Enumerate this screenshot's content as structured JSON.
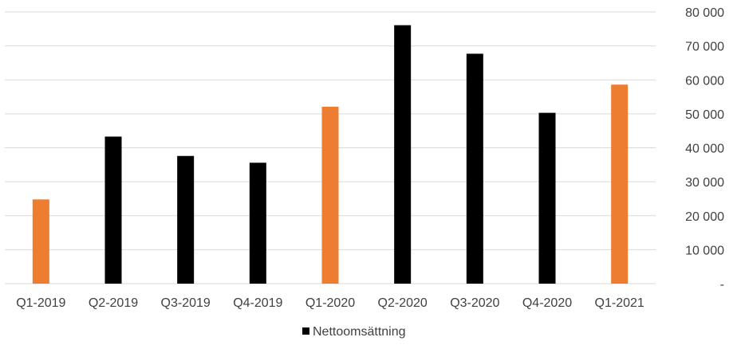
{
  "chart_data": {
    "type": "bar",
    "title": "",
    "xlabel": "",
    "ylabel": "",
    "categories": [
      "Q1-2019",
      "Q2-2019",
      "Q3-2019",
      "Q4-2019",
      "Q1-2020",
      "Q2-2020",
      "Q3-2020",
      "Q4-2020",
      "Q1-2021"
    ],
    "series": [
      {
        "name": "Nettoomsättning",
        "values": [
          24800,
          43300,
          37600,
          35600,
          52100,
          76100,
          67700,
          50300,
          58600
        ],
        "colors": [
          "#ED7D31",
          "#000000",
          "#000000",
          "#000000",
          "#ED7D31",
          "#000000",
          "#000000",
          "#000000",
          "#ED7D31"
        ]
      }
    ],
    "ylim": [
      0,
      80000
    ],
    "yticks": [
      0,
      10000,
      20000,
      30000,
      40000,
      50000,
      60000,
      70000,
      80000
    ],
    "ytick_labels": [
      "-",
      "10 000",
      "20 000",
      "30 000",
      "40 000",
      "50 000",
      "60 000",
      "70 000",
      "80 000"
    ],
    "y_axis_position": "right",
    "grid": true,
    "legend": {
      "position": "bottom",
      "color": "#000000"
    },
    "colors": {
      "gridline": "#d9d9d9",
      "text": "#404040",
      "highlight": "#ED7D31",
      "default": "#000000"
    }
  }
}
